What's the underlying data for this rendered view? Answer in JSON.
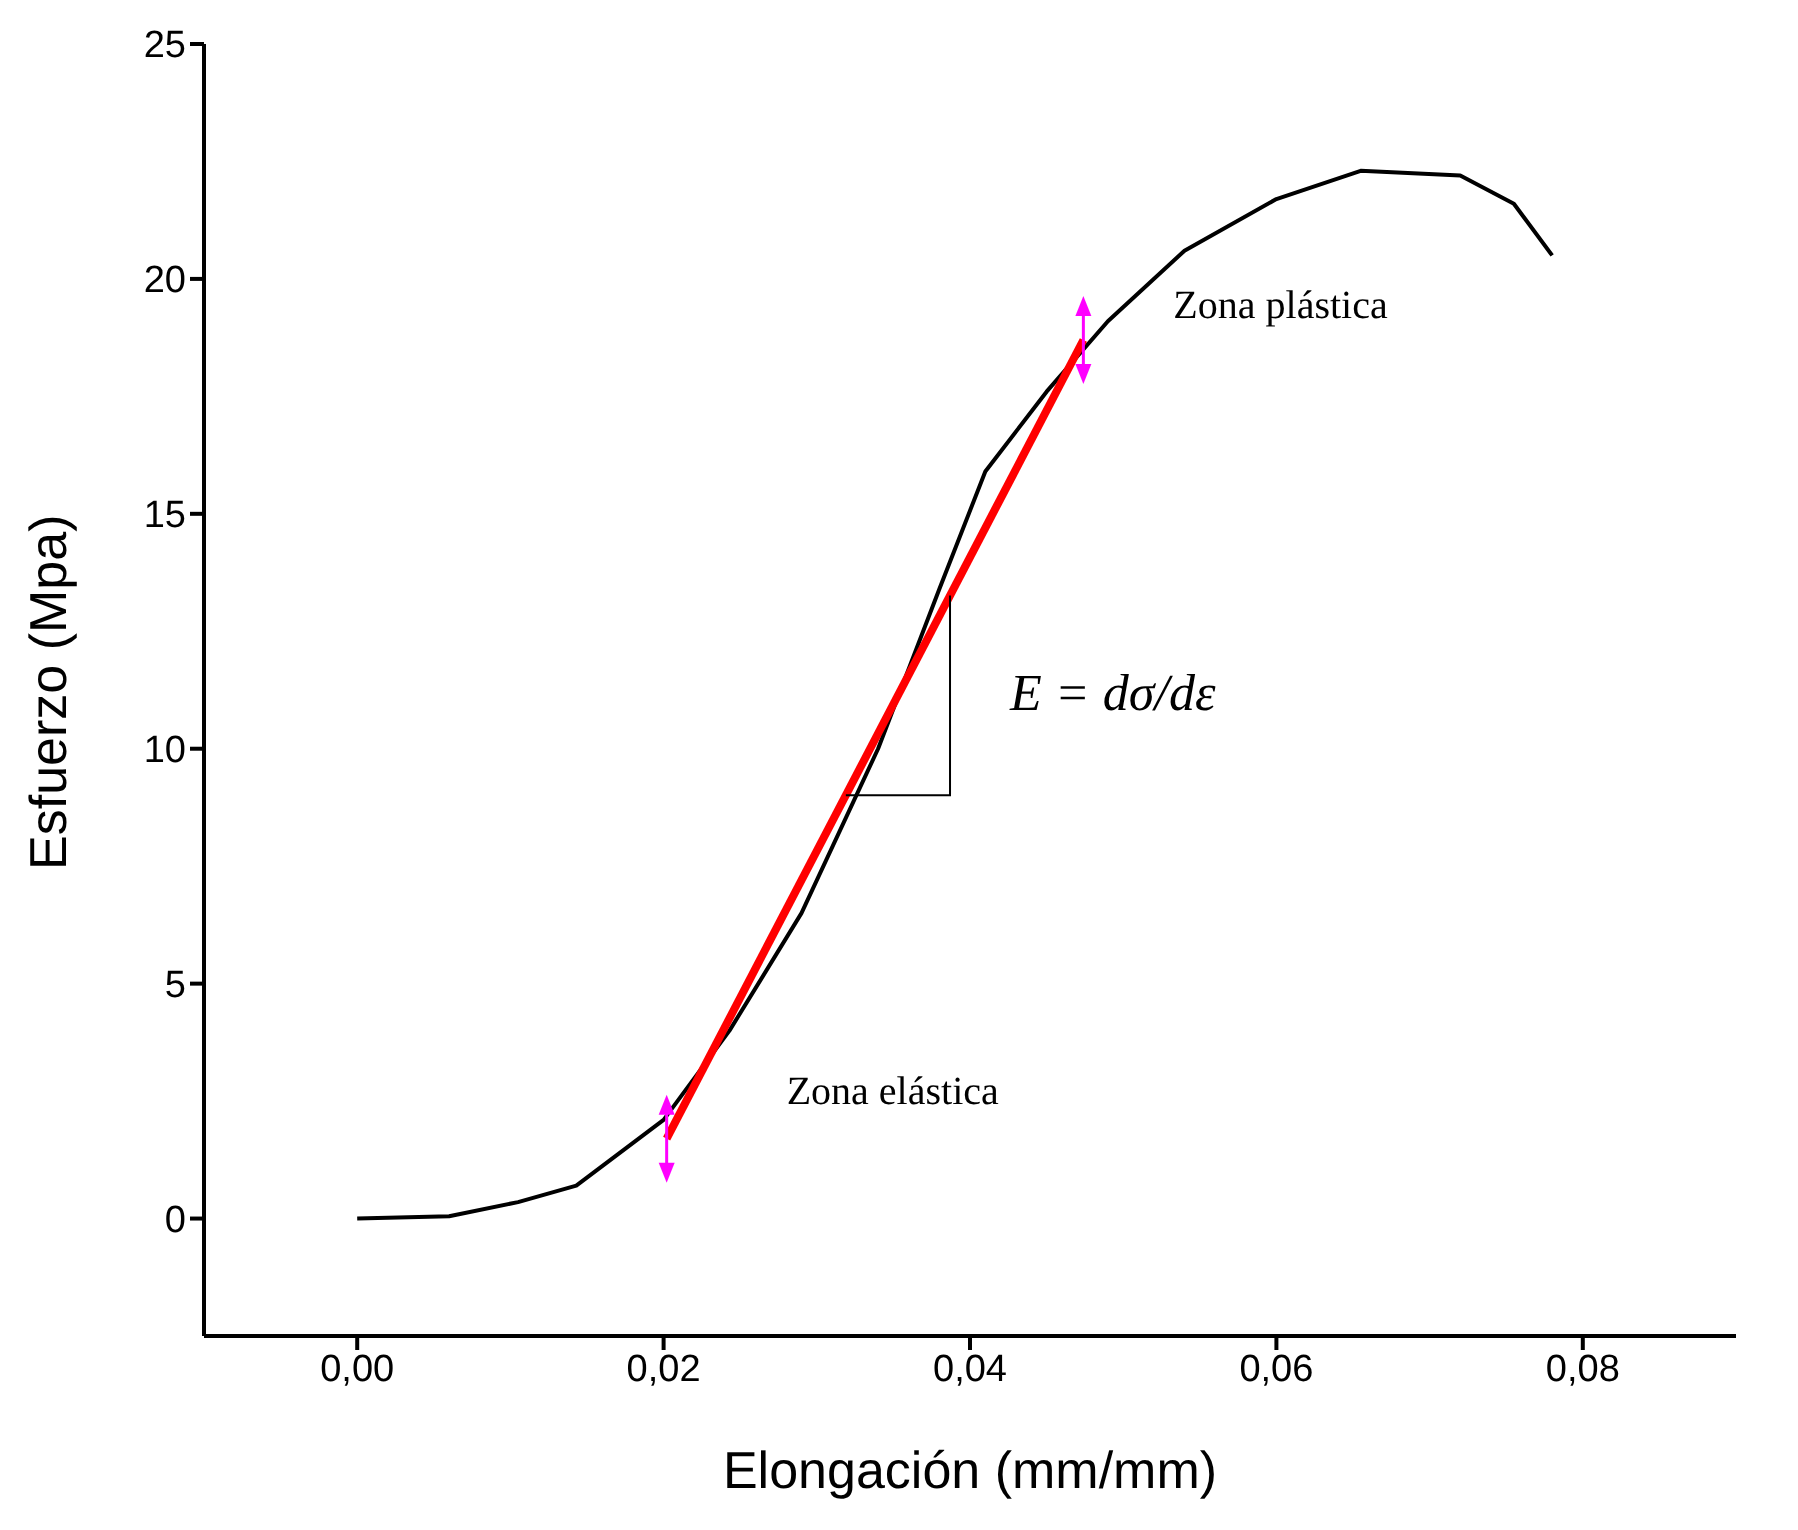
{
  "chart_data": {
    "type": "line",
    "xlabel": "Elongación (mm/mm)",
    "ylabel": "Esfuerzo (Mpa)",
    "xlim": [
      -0.01,
      0.09
    ],
    "ylim": [
      -2.5,
      25
    ],
    "xticks": [
      {
        "value": 0,
        "label": "0,00"
      },
      {
        "value": 0.02,
        "label": "0,02"
      },
      {
        "value": 0.04,
        "label": "0,04"
      },
      {
        "value": 0.06,
        "label": "0,06"
      },
      {
        "value": 0.08,
        "label": "0,08"
      }
    ],
    "yticks": [
      0,
      5,
      10,
      15,
      20,
      25
    ],
    "grid": false,
    "marker": "none",
    "line_style": "solid",
    "series": [
      {
        "color": "#000000",
        "x": [
          0,
          0.006,
          0.0105,
          0.0143,
          0.02,
          0.0243,
          0.029,
          0.034,
          0.038,
          0.041,
          0.045,
          0.049,
          0.054,
          0.06,
          0.0655,
          0.072,
          0.0755,
          0.078
        ],
        "values": [
          0,
          0.05,
          0.35,
          0.7,
          2.1,
          4,
          6.5,
          10,
          13.4,
          15.9,
          17.6,
          19.1,
          20.6,
          21.7,
          22.3,
          22.2,
          21.6,
          20.5
        ]
      },
      {
        "color": "#ff0000",
        "x": [
          0.0202,
          0.0474
        ],
        "values": [
          1.7,
          18.7
        ]
      }
    ],
    "annotations": [
      "Zona plástica",
      "Zona elástica",
      "E = dσ/dε"
    ]
  }
}
